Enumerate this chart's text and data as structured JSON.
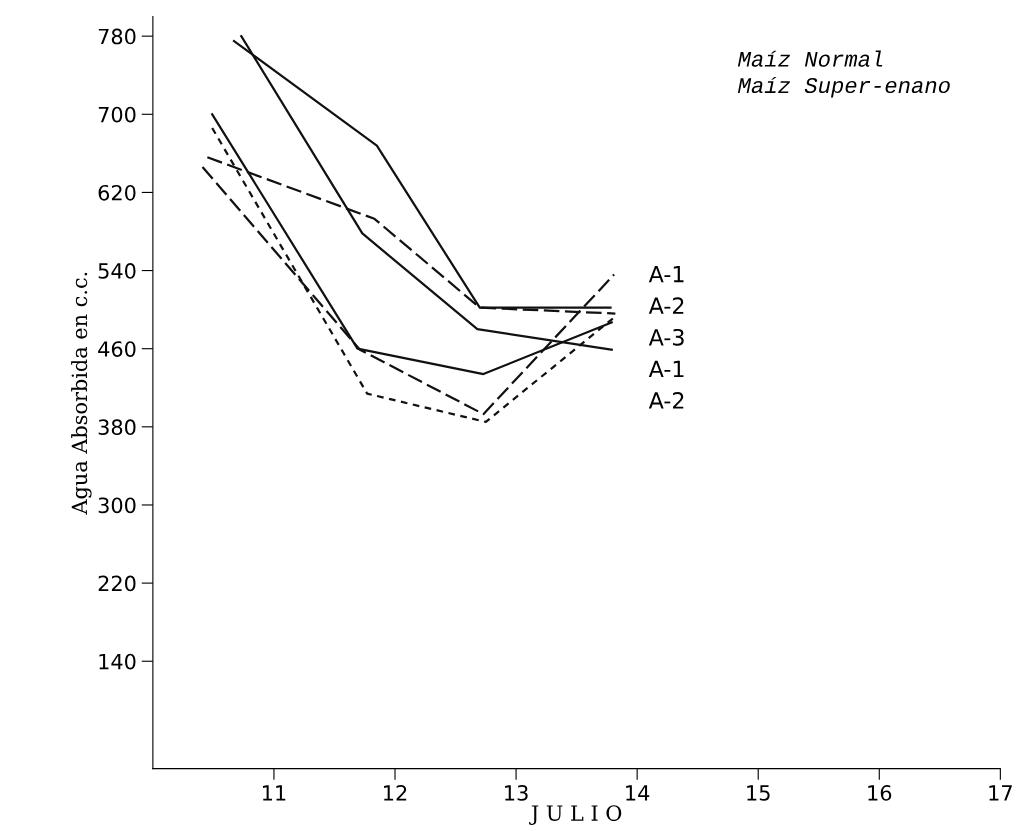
{
  "chart_data": {
    "type": "line",
    "xlabel": "J U L I O",
    "ylabel": "Agua Absorbida en c.c.",
    "xlim": [
      10,
      17
    ],
    "xticks": [
      11,
      12,
      13,
      14,
      15,
      16,
      17
    ],
    "ylim": [
      30,
      800
    ],
    "yticks": [
      140,
      220,
      300,
      380,
      460,
      540,
      620,
      700,
      780
    ],
    "grid": false,
    "marker": "none",
    "series": [
      {
        "color": "#111111",
        "line_style": "solid",
        "x": [
          10.67,
          11.85,
          12.7,
          13.78
        ],
        "values": [
          775,
          668,
          502,
          502
        ]
      },
      {
        "color": "#111111",
        "line_style": "solid",
        "x": [
          10.73,
          11.73,
          12.68,
          13.79
        ],
        "values": [
          780,
          578,
          480,
          459
        ]
      },
      {
        "color": "#111111",
        "line_style": "solid",
        "x": [
          10.49,
          11.69,
          12.73,
          13.79
        ],
        "values": [
          700,
          460,
          434,
          487
        ]
      },
      {
        "color": "#111111",
        "line_style": "dashed",
        "x": [
          10.45,
          11.83,
          12.7,
          13.82
        ],
        "values": [
          656,
          593,
          502,
          496
        ]
      },
      {
        "color": "#111111",
        "line_style": "dashed",
        "x": [
          10.41,
          11.71,
          12.73,
          13.81
        ],
        "values": [
          646,
          459,
          393,
          536
        ]
      },
      {
        "color": "#111111",
        "line_style": "dotted",
        "x": [
          10.49,
          11.77,
          12.75,
          13.82
        ],
        "values": [
          686,
          414,
          385,
          493
        ]
      }
    ],
    "annotations": [
      "Maíz Normal",
      "Maíz Super-enano",
      "A-1",
      "A-2",
      "A-3",
      "A-1",
      "A-2"
    ]
  }
}
